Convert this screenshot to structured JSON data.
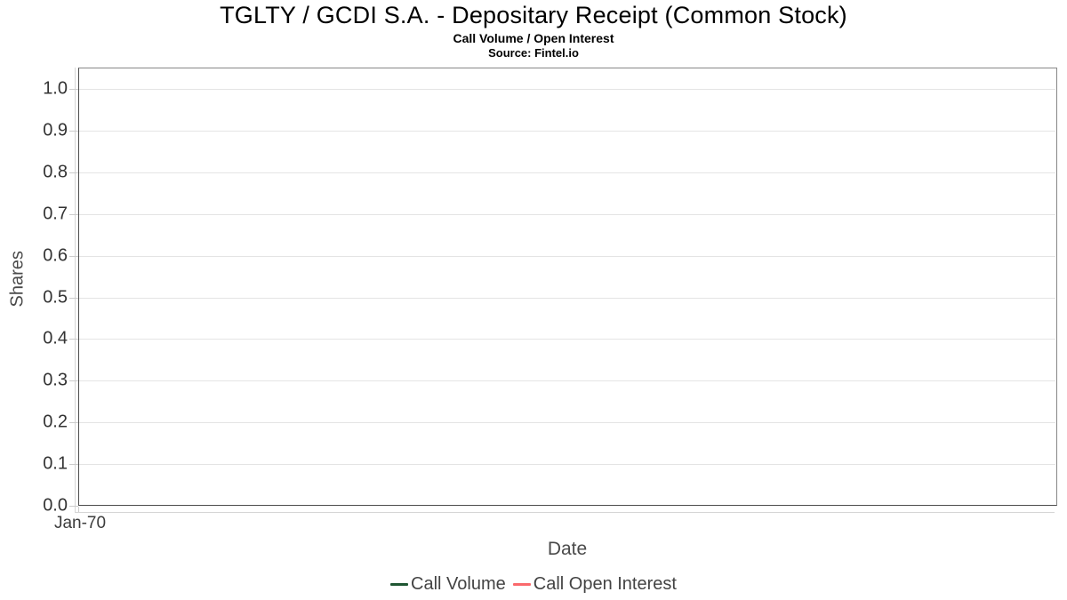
{
  "header": {
    "title": "TGLTY / GCDI S.A. - Depositary Receipt (Common Stock)",
    "subtitle": "Call Volume / Open Interest",
    "source": "Source: Fintel.io"
  },
  "chart_data": {
    "type": "line",
    "title": "TGLTY / GCDI S.A. - Depositary Receipt (Common Stock)",
    "subtitle": "Call Volume / Open Interest",
    "source": "Source: Fintel.io",
    "xlabel": "Date",
    "ylabel": "Shares",
    "x_ticks": [
      "Jan-70"
    ],
    "y_ticks": [
      "0.0",
      "0.1",
      "0.2",
      "0.3",
      "0.4",
      "0.5",
      "0.6",
      "0.7",
      "0.8",
      "0.9",
      "1.0"
    ],
    "ylim": [
      0.0,
      1.0
    ],
    "grid": true,
    "legend_position": "bottom",
    "series": [
      {
        "name": "Call Volume",
        "color": "#1f5632",
        "values": []
      },
      {
        "name": "Call Open Interest",
        "color": "#fa696c",
        "values": []
      }
    ]
  }
}
